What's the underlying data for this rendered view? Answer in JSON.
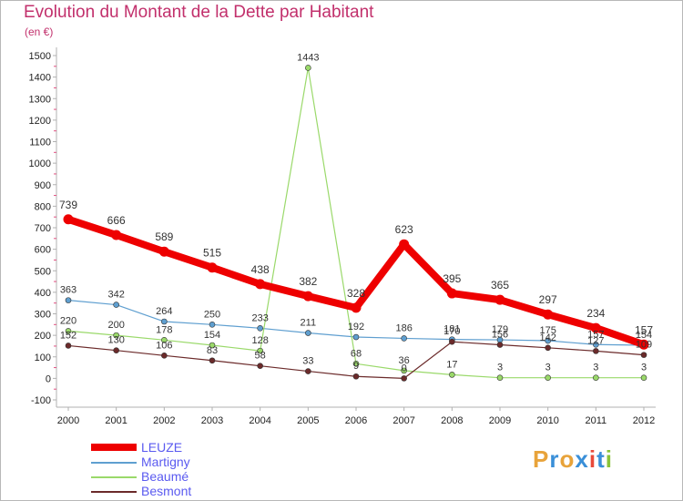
{
  "title": "Evolution du Montant de la Dette par Habitant",
  "subtitle": "(en €)",
  "logo": {
    "text": "Proxiti",
    "colors": [
      "#e8a33a",
      "#3a8fd8",
      "#e8a33a",
      "#3a8fd8",
      "#e84a3a",
      "#3a8fd8",
      "#8ac43a"
    ]
  },
  "chart_data": {
    "type": "line",
    "x": [
      "2000",
      "2001",
      "2002",
      "2003",
      "2004",
      "2005",
      "2006",
      "2007",
      "2008",
      "2009",
      "2010",
      "2011",
      "2012"
    ],
    "ylim": [
      -100,
      1500
    ],
    "yticks": [
      -100,
      0,
      100,
      200,
      300,
      400,
      500,
      600,
      700,
      800,
      900,
      1000,
      1100,
      1200,
      1300,
      1400,
      1500
    ],
    "grid": false,
    "legend_position": "bottom-left",
    "series": [
      {
        "name": "LEUZE",
        "color": "#ee0000",
        "width": 8,
        "marker": 5,
        "values": [
          739,
          666,
          589,
          515,
          438,
          382,
          328,
          623,
          395,
          365,
          297,
          234,
          157
        ]
      },
      {
        "name": "Martigny",
        "color": "#5f9fd0",
        "width": 1.2,
        "marker": 3,
        "values": [
          363,
          342,
          264,
          250,
          233,
          211,
          192,
          186,
          181,
          179,
          175,
          157,
          154
        ]
      },
      {
        "name": "Beaumé",
        "color": "#9ad96a",
        "width": 1.2,
        "marker": 3,
        "values": [
          220,
          200,
          178,
          154,
          128,
          1443,
          68,
          36,
          17,
          3,
          3,
          3,
          3
        ]
      },
      {
        "name": "Besmont",
        "color": "#6b2a2a",
        "width": 1.2,
        "marker": 3,
        "values": [
          152,
          130,
          106,
          83,
          58,
          33,
          9,
          0,
          170,
          156,
          142,
          127,
          109
        ]
      }
    ]
  }
}
